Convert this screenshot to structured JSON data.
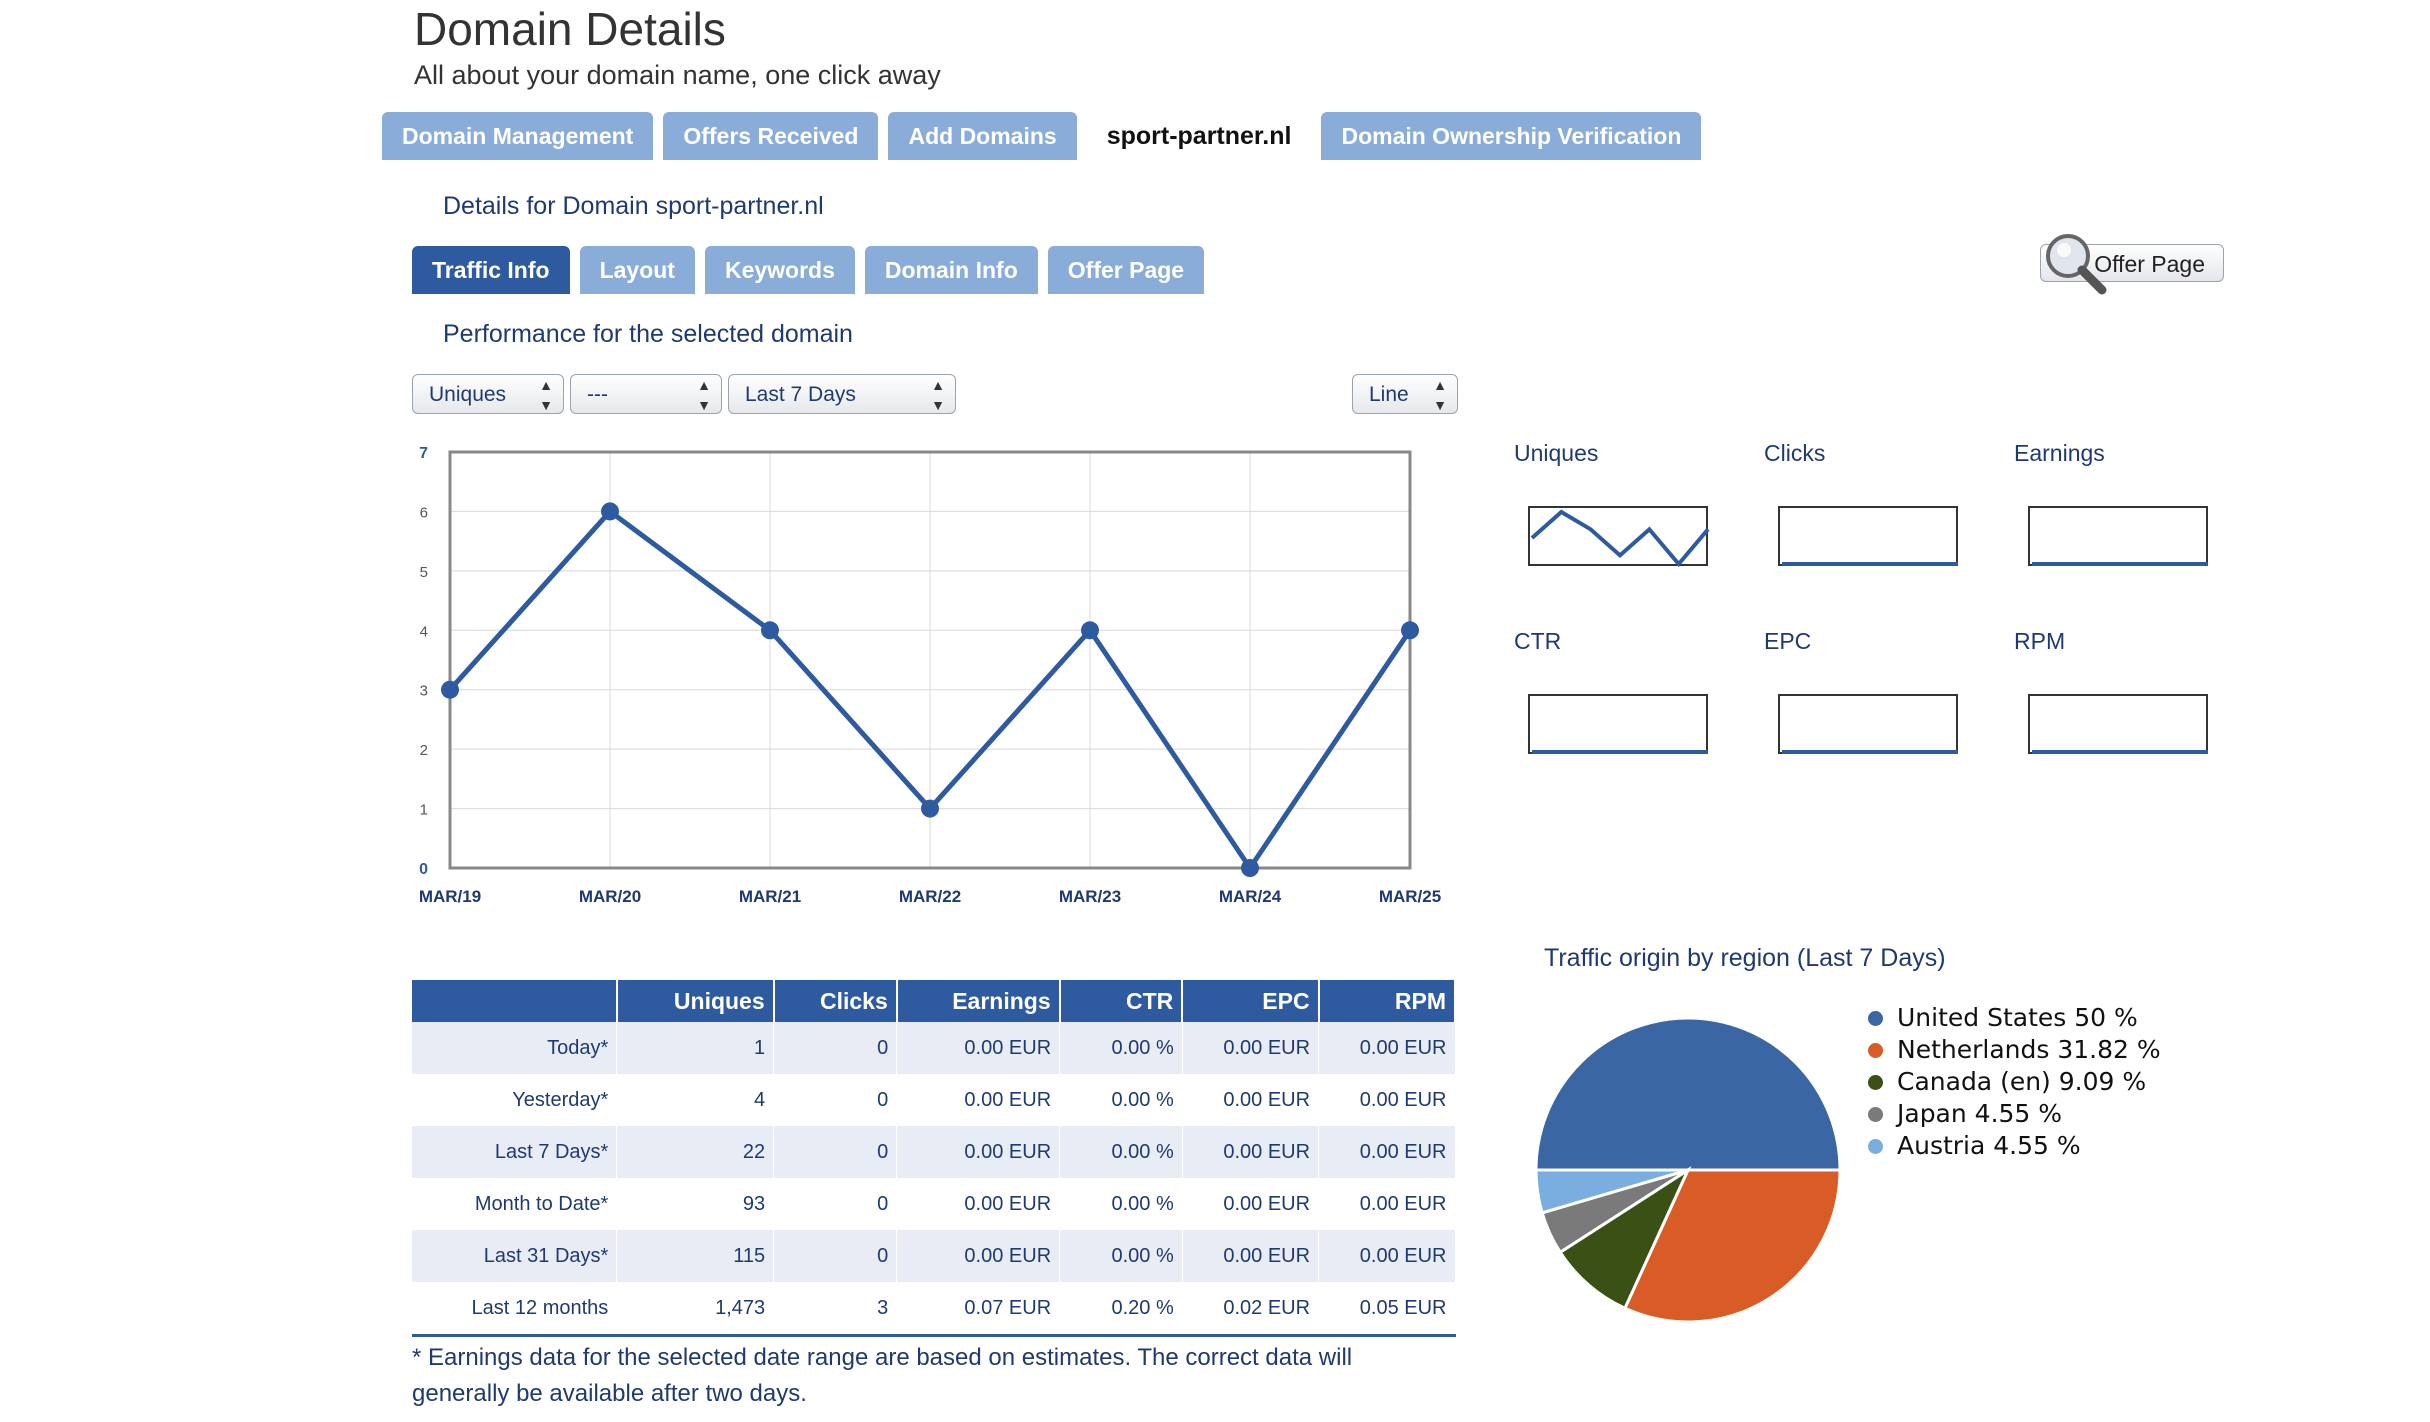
{
  "header": {
    "title": "Domain Details",
    "subtitle": "All about your domain name, one click away"
  },
  "main_tabs": [
    {
      "label": "Domain Management",
      "active": false
    },
    {
      "label": "Offers Received",
      "active": false
    },
    {
      "label": "Add Domains",
      "active": false
    },
    {
      "label": "sport-partner.nl",
      "active": true
    },
    {
      "label": "Domain Ownership Verification",
      "active": false
    }
  ],
  "details_title": "Details for Domain sport-partner.nl",
  "sub_tabs": [
    {
      "label": "Traffic Info",
      "active": true
    },
    {
      "label": "Layout",
      "active": false
    },
    {
      "label": "Keywords",
      "active": false
    },
    {
      "label": "Domain Info",
      "active": false
    },
    {
      "label": "Offer Page",
      "active": false
    }
  ],
  "offer_page_button": {
    "label": "Offer Page",
    "icon": "magnifier-icon"
  },
  "performance_title": "Performance for the selected domain",
  "controls": {
    "metric": "Uniques",
    "compare": "---",
    "range": "Last 7 Days",
    "chart_type": "Line"
  },
  "chart_data": {
    "type": "line",
    "categories": [
      "MAR/19",
      "MAR/20",
      "MAR/21",
      "MAR/22",
      "MAR/23",
      "MAR/24",
      "MAR/25"
    ],
    "series": [
      {
        "values": [
          3,
          6,
          4,
          1,
          4,
          0,
          4
        ]
      }
    ],
    "y_ticks": [
      0,
      1,
      2,
      3,
      4,
      5,
      6,
      7
    ],
    "ylim": [
      0,
      7
    ],
    "grid": true,
    "color": "#2e5aa0"
  },
  "sparklines": [
    {
      "label": "Uniques",
      "values": [
        3,
        6,
        4,
        1,
        4,
        0,
        4
      ]
    },
    {
      "label": "Clicks",
      "values": [
        0,
        0,
        0,
        0,
        0,
        0,
        0
      ]
    },
    {
      "label": "Earnings",
      "values": [
        0,
        0,
        0,
        0,
        0,
        0,
        0
      ]
    },
    {
      "label": "CTR",
      "values": [
        0,
        0,
        0,
        0,
        0,
        0,
        0
      ]
    },
    {
      "label": "EPC",
      "values": [
        0,
        0,
        0,
        0,
        0,
        0,
        0
      ]
    },
    {
      "label": "RPM",
      "values": [
        0,
        0,
        0,
        0,
        0,
        0,
        0
      ]
    }
  ],
  "table": {
    "columns": [
      "",
      "Uniques",
      "Clicks",
      "Earnings",
      "CTR",
      "EPC",
      "RPM"
    ],
    "rows": [
      [
        "Today*",
        "1",
        "0",
        "0.00 EUR",
        "0.00 %",
        "0.00 EUR",
        "0.00 EUR"
      ],
      [
        "Yesterday*",
        "4",
        "0",
        "0.00 EUR",
        "0.00 %",
        "0.00 EUR",
        "0.00 EUR"
      ],
      [
        "Last 7 Days*",
        "22",
        "0",
        "0.00 EUR",
        "0.00 %",
        "0.00 EUR",
        "0.00 EUR"
      ],
      [
        "Month to Date*",
        "93",
        "0",
        "0.00 EUR",
        "0.00 %",
        "0.00 EUR",
        "0.00 EUR"
      ],
      [
        "Last 31 Days*",
        "115",
        "0",
        "0.00 EUR",
        "0.00 %",
        "0.00 EUR",
        "0.00 EUR"
      ],
      [
        "Last 12 months",
        "1,473",
        "3",
        "0.07 EUR",
        "0.20 %",
        "0.02 EUR",
        "0.05 EUR"
      ]
    ]
  },
  "footnote": "* Earnings data for the selected date range are based on estimates. The correct data will generally be available after two days.",
  "pie": {
    "title": "Traffic origin by region (Last 7 Days)",
    "slices": [
      {
        "label": "United States 50 %",
        "value": 50,
        "color": "#3a66a3"
      },
      {
        "label": "Netherlands 31.82 %",
        "value": 31.82,
        "color": "#d95b26"
      },
      {
        "label": "Canada (en) 9.09 %",
        "value": 9.09,
        "color": "#3b5015"
      },
      {
        "label": "Japan 4.55 %",
        "value": 4.55,
        "color": "#7a7a7a"
      },
      {
        "label": "Austria 4.55 %",
        "value": 4.55,
        "color": "#7aaee0"
      }
    ]
  }
}
